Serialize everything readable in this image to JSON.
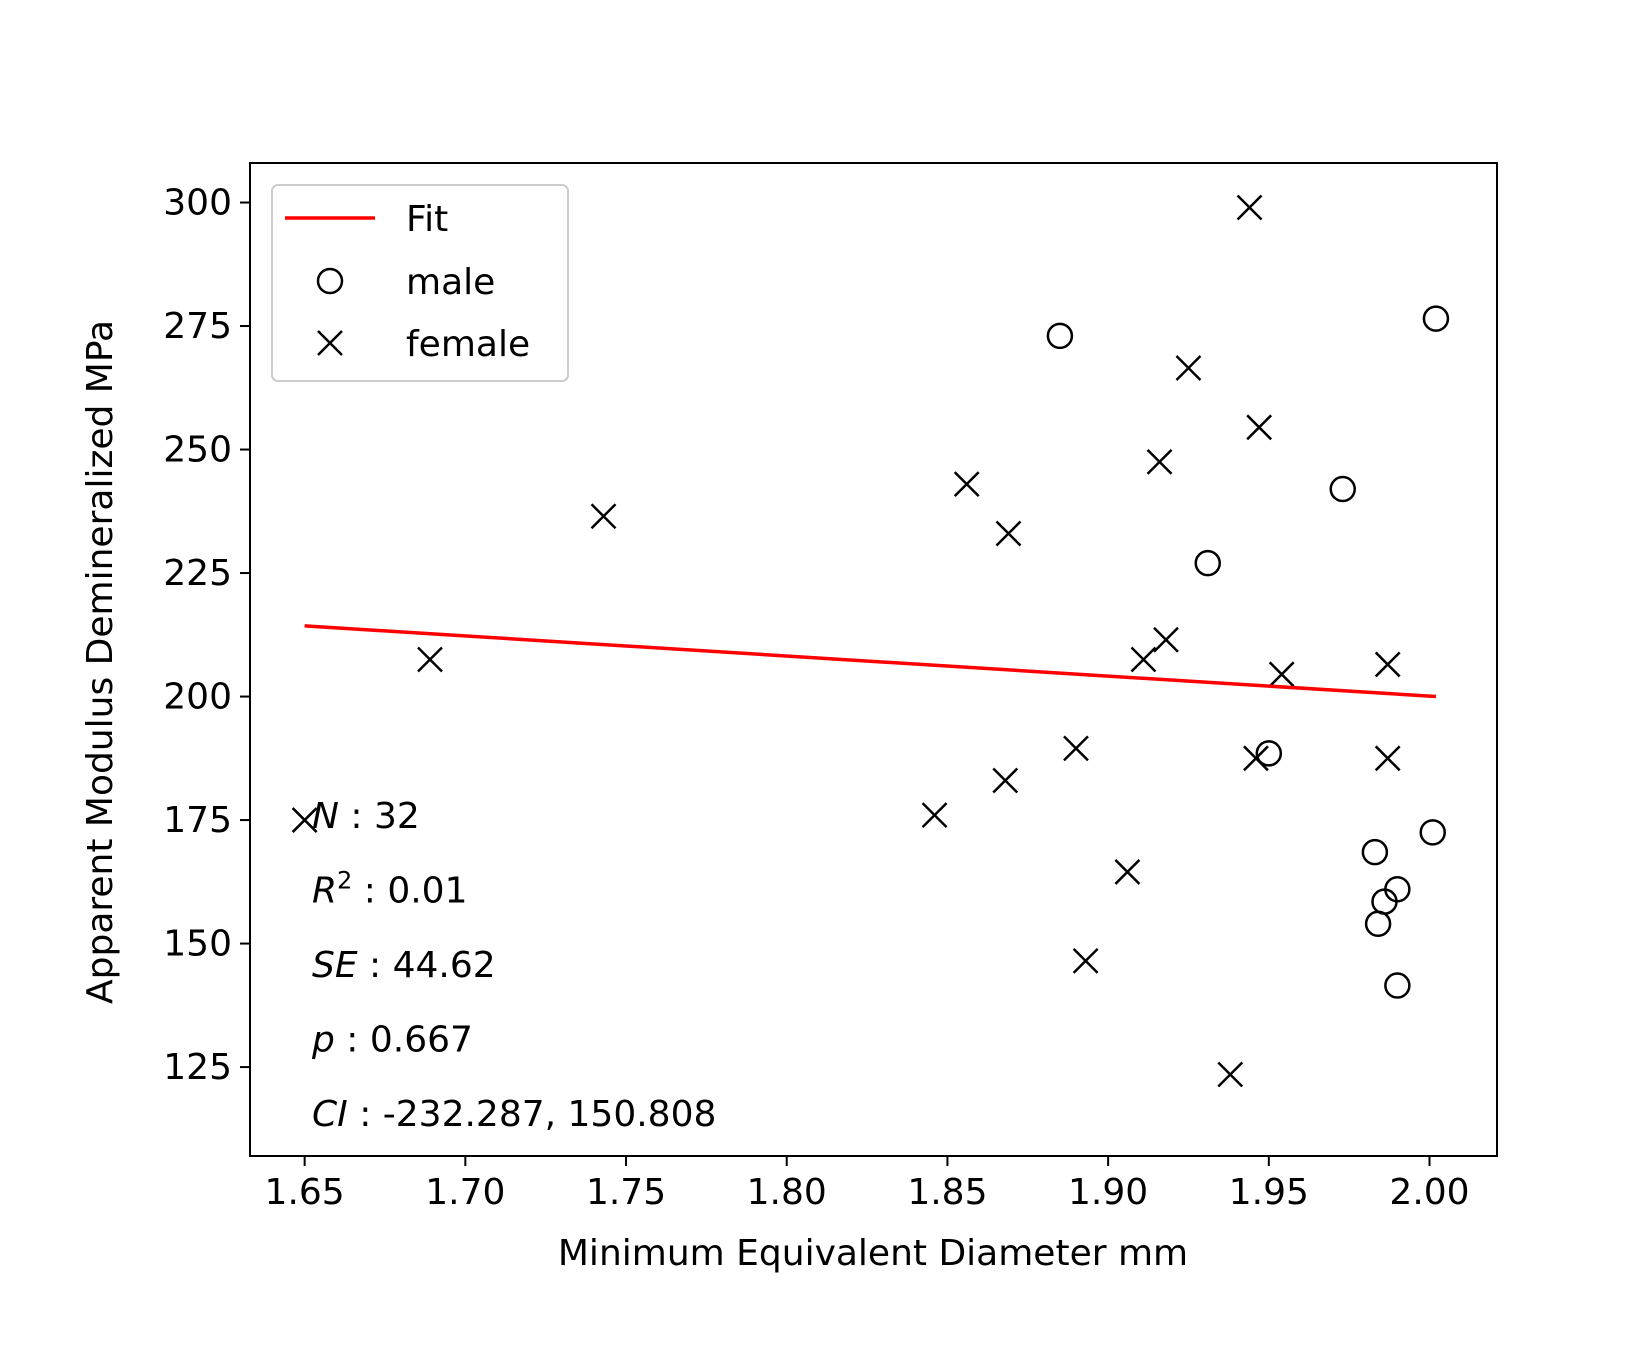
{
  "chart_data": {
    "type": "scatter",
    "xlabel": "Minimum Equivalent Diameter mm",
    "ylabel": "Apparent Modulus Demineralized MPa",
    "xlim": [
      1.633,
      2.021
    ],
    "ylim": [
      107,
      308
    ],
    "x_ticks": [
      "1.65",
      "1.70",
      "1.75",
      "1.80",
      "1.85",
      "1.90",
      "1.95",
      "2.00"
    ],
    "y_ticks": [
      "125",
      "150",
      "175",
      "200",
      "225",
      "250",
      "275",
      "300"
    ],
    "grid": false,
    "legend_position": "top-left",
    "legend": [
      {
        "label": "Fit",
        "marker": "line",
        "color": "#ff0000"
      },
      {
        "label": "male",
        "marker": "circle",
        "color": "#000000"
      },
      {
        "label": "female",
        "marker": "x",
        "color": "#000000"
      }
    ],
    "series": [
      {
        "name": "male",
        "marker": "circle",
        "color": "#000000",
        "points": [
          [
            1.885,
            273
          ],
          [
            2.002,
            276.5
          ],
          [
            1.973,
            242
          ],
          [
            1.931,
            227
          ],
          [
            1.95,
            188.5
          ],
          [
            2.001,
            172.5
          ],
          [
            1.983,
            168.5
          ],
          [
            1.99,
            161
          ],
          [
            1.986,
            158.5
          ],
          [
            1.984,
            154
          ],
          [
            1.99,
            141.5
          ]
        ]
      },
      {
        "name": "female",
        "marker": "x",
        "color": "#000000",
        "points": [
          [
            1.944,
            299
          ],
          [
            1.925,
            266.5
          ],
          [
            1.947,
            254.5
          ],
          [
            1.916,
            247.5
          ],
          [
            1.856,
            243
          ],
          [
            1.743,
            236.5
          ],
          [
            1.869,
            233
          ],
          [
            1.918,
            211.5
          ],
          [
            1.911,
            207.5
          ],
          [
            1.689,
            207.5
          ],
          [
            1.987,
            206.5
          ],
          [
            1.954,
            204.5
          ],
          [
            1.89,
            189.5
          ],
          [
            1.987,
            187.5
          ],
          [
            1.946,
            187.5
          ],
          [
            1.868,
            183
          ],
          [
            1.846,
            176
          ],
          [
            1.65,
            175
          ],
          [
            1.906,
            164.5
          ],
          [
            1.893,
            146.5
          ],
          [
            1.938,
            123.5
          ]
        ]
      },
      {
        "name": "Fit",
        "type": "line",
        "color": "#ff0000",
        "points": [
          [
            1.65,
            214.3
          ],
          [
            2.002,
            200
          ]
        ]
      }
    ],
    "annotations": [
      {
        "label": "N",
        "value": " : 32"
      },
      {
        "label": "R",
        "sup": "2",
        "value": " : 0.01"
      },
      {
        "label": "SE",
        "value": " : 44.62"
      },
      {
        "label": "p",
        "value": " : 0.667"
      },
      {
        "label": "CI",
        "value": " : -232.287,  150.808"
      }
    ]
  }
}
